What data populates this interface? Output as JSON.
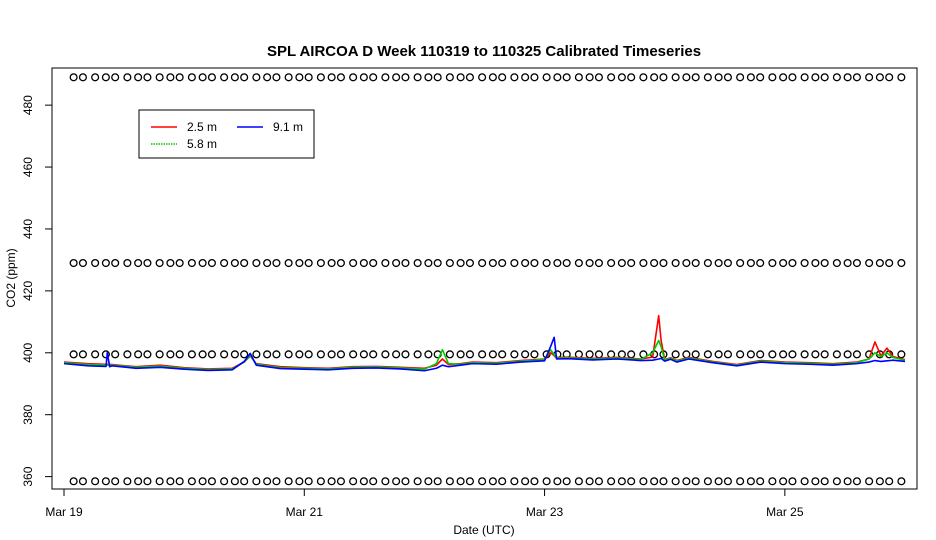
{
  "chart_data": {
    "type": "line",
    "title": "SPL AIRCOA D  Week 110319 to 110325  Calibrated Timeseries",
    "xlabel": "Date (UTC)",
    "ylabel": "CO2 (ppm)",
    "x_unit": "days since Mar 19 00:00 UTC",
    "xlim": [
      -0.1,
      7.1
    ],
    "ylim": [
      356,
      492
    ],
    "x_ticks": [
      {
        "value": 0,
        "label": "Mar 19"
      },
      {
        "value": 2,
        "label": "Mar 21"
      },
      {
        "value": 4,
        "label": "Mar 23"
      },
      {
        "value": 6,
        "label": "Mar 25"
      }
    ],
    "y_ticks": [
      360,
      380,
      400,
      420,
      440,
      460,
      480
    ],
    "grid": false,
    "legend": {
      "placement": "top-left",
      "entries": [
        {
          "name": "2.5 m",
          "color": "#ff0000"
        },
        {
          "name": "5.8 m",
          "color": "#00cc00"
        },
        {
          "name": "9.1 m",
          "color": "#0000ff"
        }
      ]
    },
    "reference_marker_levels": [
      {
        "name": "standard 1",
        "y": 489
      },
      {
        "name": "standard 2",
        "y": 429
      },
      {
        "name": "standard 3",
        "y": 399.5
      },
      {
        "name": "standard 4",
        "y": 358.5
      }
    ],
    "reference_marker_x_range": [
      0.08,
      6.97
    ],
    "series": [
      {
        "name": "2.5 m",
        "color": "#ff0000",
        "x": [
          0,
          0.2,
          0.4,
          0.6,
          0.8,
          1.0,
          1.2,
          1.4,
          1.5,
          1.55,
          1.6,
          1.8,
          2.0,
          2.2,
          2.4,
          2.6,
          2.8,
          3.0,
          3.1,
          3.15,
          3.2,
          3.3,
          3.4,
          3.6,
          3.8,
          4.0,
          4.05,
          4.1,
          4.2,
          4.4,
          4.6,
          4.8,
          4.9,
          4.95,
          4.97,
          5.0,
          5.05,
          5.1,
          5.2,
          5.4,
          5.6,
          5.8,
          6.0,
          6.2,
          6.4,
          6.6,
          6.7,
          6.75,
          6.8,
          6.85,
          6.9,
          7.0
        ],
        "y": [
          397,
          396.5,
          396.2,
          395.5,
          396,
          395.2,
          394.8,
          395,
          397,
          399,
          396.5,
          395.5,
          395.2,
          395,
          395.5,
          395.6,
          395.3,
          395,
          396,
          398,
          396.2,
          396.5,
          397,
          396.8,
          397.5,
          398,
          400,
          398.5,
          398.6,
          398.2,
          398.5,
          398,
          398.6,
          412,
          404,
          397.8,
          398.4,
          397.5,
          398.5,
          397.2,
          396.2,
          397.5,
          397,
          396.8,
          396.5,
          397,
          398,
          403.5,
          399,
          401.5,
          398.8,
          397.8
        ]
      },
      {
        "name": "5.8 m",
        "color": "#00cc00",
        "x": [
          0,
          0.2,
          0.4,
          0.6,
          0.8,
          1.0,
          1.2,
          1.4,
          1.5,
          1.55,
          1.6,
          1.8,
          2.0,
          2.2,
          2.4,
          2.6,
          2.8,
          3.0,
          3.1,
          3.15,
          3.2,
          3.3,
          3.4,
          3.6,
          3.8,
          4.0,
          4.05,
          4.1,
          4.2,
          4.4,
          4.6,
          4.8,
          4.9,
          4.95,
          4.97,
          5.0,
          5.05,
          5.1,
          5.2,
          5.4,
          5.6,
          5.8,
          6.0,
          6.2,
          6.4,
          6.6,
          6.7,
          6.75,
          6.8,
          6.85,
          6.9,
          7.0
        ],
        "y": [
          396.8,
          396.2,
          396,
          395.3,
          395.7,
          395,
          394.6,
          394.8,
          397,
          399.2,
          396.3,
          395.2,
          395,
          394.8,
          395.3,
          395.4,
          395.1,
          394.7,
          396.5,
          401,
          396.5,
          396.3,
          396.8,
          396.6,
          397.3,
          397.8,
          401,
          398.3,
          398.4,
          398,
          398.3,
          397.8,
          400,
          404,
          402,
          397.6,
          398.2,
          397.3,
          398.3,
          397,
          396,
          397.3,
          396.8,
          396.6,
          396.3,
          396.8,
          398,
          400,
          398.8,
          400,
          398.5,
          397.6
        ]
      },
      {
        "name": "9.1 m",
        "color": "#0000ff",
        "x": [
          0,
          0.2,
          0.35,
          0.36,
          0.38,
          0.4,
          0.6,
          0.8,
          1.0,
          1.2,
          1.4,
          1.5,
          1.55,
          1.6,
          1.8,
          2.0,
          2.2,
          2.4,
          2.6,
          2.8,
          3.0,
          3.1,
          3.15,
          3.2,
          3.3,
          3.4,
          3.6,
          3.8,
          4.0,
          4.05,
          4.08,
          4.1,
          4.2,
          4.4,
          4.6,
          4.8,
          4.9,
          4.95,
          4.97,
          5.0,
          5.05,
          5.1,
          5.2,
          5.4,
          5.6,
          5.8,
          6.0,
          6.2,
          6.4,
          6.6,
          6.7,
          6.75,
          6.8,
          6.85,
          6.9,
          7.0
        ],
        "y": [
          396.5,
          395.8,
          395.6,
          400,
          395.5,
          395.8,
          395,
          395.3,
          394.7,
          394.3,
          394.5,
          397.2,
          399.8,
          396,
          394.9,
          394.7,
          394.5,
          395,
          395.1,
          394.8,
          394.2,
          395,
          396,
          395.5,
          396,
          396.5,
          396.3,
          397,
          397.4,
          402,
          405,
          398,
          398.1,
          397.7,
          398,
          397.5,
          397.6,
          398,
          398.2,
          397.3,
          397.9,
          397,
          398,
          396.8,
          395.8,
          397,
          396.5,
          396.3,
          396,
          396.5,
          397,
          397.5,
          397.2,
          397.4,
          397.6,
          397.2
        ]
      }
    ]
  }
}
